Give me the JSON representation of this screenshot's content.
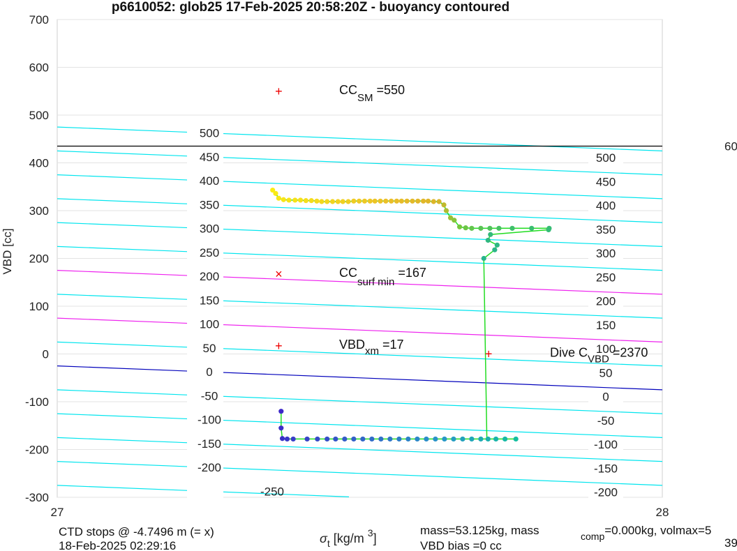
{
  "chart_data": {
    "type": "scatter",
    "title": "p6610052: glob25 17-Feb-2025 20:58:20Z - buoyancy contoured",
    "xlabel": "σt [kg/m 3]",
    "ylabel": "VBD [cc]",
    "xlim": [
      27,
      28
    ],
    "ylim": [
      -300,
      700
    ],
    "x_ticks": [
      "27",
      "28"
    ],
    "y_ticks": [
      "-300",
      "-200",
      "-100",
      "0",
      "100",
      "200",
      "300",
      "400",
      "500",
      "600",
      "700"
    ],
    "grid": true,
    "colors": {
      "contour": "#00e5ee",
      "contour_magenta": "#ee22ee",
      "zero_line": "#0000bb",
      "limit_line": "#000000",
      "marker": "#ee0000",
      "path": "#22dd22"
    },
    "contour_labels_left": [
      "500",
      "450",
      "400",
      "350",
      "300",
      "250",
      "200",
      "150",
      "100",
      "50",
      "0",
      "-50",
      "-100",
      "-150",
      "-200",
      "-250"
    ],
    "contour_labels_right": [
      "500",
      "450",
      "400",
      "350",
      "300",
      "250",
      "200",
      "150",
      "100",
      "50",
      "0",
      "-50",
      "-100",
      "-150",
      "-200"
    ],
    "right_edge_label": "60",
    "markers": [
      {
        "symbol": "+",
        "x": 27.366,
        "y": 550,
        "label": "CC",
        "sub": "SM",
        "value": "=550"
      },
      {
        "symbol": "×",
        "x": 27.366,
        "y": 167,
        "label": "CC",
        "sub": "surf min",
        "value": "=167"
      },
      {
        "symbol": "+",
        "x": 27.366,
        "y": 17,
        "label": "VBD",
        "sub": "xm",
        "value": "=17"
      },
      {
        "symbol": "+",
        "x": 27.713,
        "y": 0,
        "label": "Dive C",
        "sub": "VBD",
        "value": "=2370"
      }
    ],
    "series": [
      {
        "points_upper": [
          [
            27.356,
            343
          ],
          [
            27.361,
            336
          ],
          [
            27.366,
            326
          ],
          [
            27.374,
            323
          ],
          [
            27.383,
            322
          ],
          [
            27.393,
            322
          ],
          [
            27.402,
            322
          ],
          [
            27.411,
            321
          ],
          [
            27.42,
            321
          ],
          [
            27.429,
            320
          ],
          [
            27.437,
            319
          ],
          [
            27.446,
            319
          ],
          [
            27.455,
            319
          ],
          [
            27.464,
            319
          ],
          [
            27.472,
            319
          ],
          [
            27.481,
            319
          ],
          [
            27.49,
            320
          ],
          [
            27.499,
            320
          ],
          [
            27.508,
            320
          ],
          [
            27.517,
            320
          ],
          [
            27.525,
            320
          ],
          [
            27.534,
            320
          ],
          [
            27.543,
            320
          ],
          [
            27.552,
            320
          ],
          [
            27.561,
            320
          ],
          [
            27.569,
            320
          ],
          [
            27.578,
            320
          ],
          [
            27.587,
            320
          ],
          [
            27.596,
            320
          ],
          [
            27.605,
            320
          ],
          [
            27.613,
            320
          ],
          [
            27.622,
            319
          ],
          [
            27.631,
            319
          ],
          [
            27.639,
            312
          ],
          [
            27.643,
            300
          ],
          [
            27.65,
            285
          ],
          [
            27.656,
            280
          ],
          [
            27.665,
            266
          ],
          [
            27.675,
            264
          ],
          [
            27.685,
            263
          ],
          [
            27.7,
            263
          ],
          [
            27.715,
            263
          ],
          [
            27.73,
            263
          ],
          [
            27.752,
            263
          ],
          [
            27.784,
            263
          ],
          [
            27.813,
            263
          ],
          [
            27.812,
            260
          ],
          [
            27.716,
            250
          ],
          [
            27.712,
            238
          ],
          [
            27.727,
            228
          ],
          [
            27.723,
            218
          ],
          [
            27.705,
            200
          ]
        ],
        "points_lower": [
          [
            27.37,
            -120
          ],
          [
            27.37,
            -155
          ],
          [
            27.372,
            -177
          ],
          [
            27.38,
            -178
          ],
          [
            27.39,
            -178
          ],
          [
            27.413,
            -178
          ],
          [
            27.43,
            -178
          ],
          [
            27.446,
            -178
          ],
          [
            27.46,
            -178
          ],
          [
            27.475,
            -178
          ],
          [
            27.49,
            -178
          ],
          [
            27.505,
            -178
          ],
          [
            27.52,
            -178
          ],
          [
            27.535,
            -178
          ],
          [
            27.55,
            -178
          ],
          [
            27.565,
            -178
          ],
          [
            27.58,
            -178
          ],
          [
            27.595,
            -178
          ],
          [
            27.61,
            -178
          ],
          [
            27.625,
            -178
          ],
          [
            27.64,
            -178
          ],
          [
            27.655,
            -178
          ],
          [
            27.67,
            -178
          ],
          [
            27.685,
            -178
          ],
          [
            27.7,
            -178
          ],
          [
            27.712,
            -178
          ],
          [
            27.725,
            -178
          ],
          [
            27.74,
            -178
          ],
          [
            27.758,
            -178
          ]
        ]
      }
    ],
    "footer": {
      "left_line1": "CTD stops @ -4.7496 m (= x)",
      "left_line2": "18-Feb-2025 02:29:16",
      "mid_line1": "mass=53.125kg, mass",
      "mid_sub": "comp",
      "mid_tail": "=0.000kg, volmax=5",
      "mid_line2": "VBD bias =0 cc",
      "right_line2": "39"
    }
  }
}
